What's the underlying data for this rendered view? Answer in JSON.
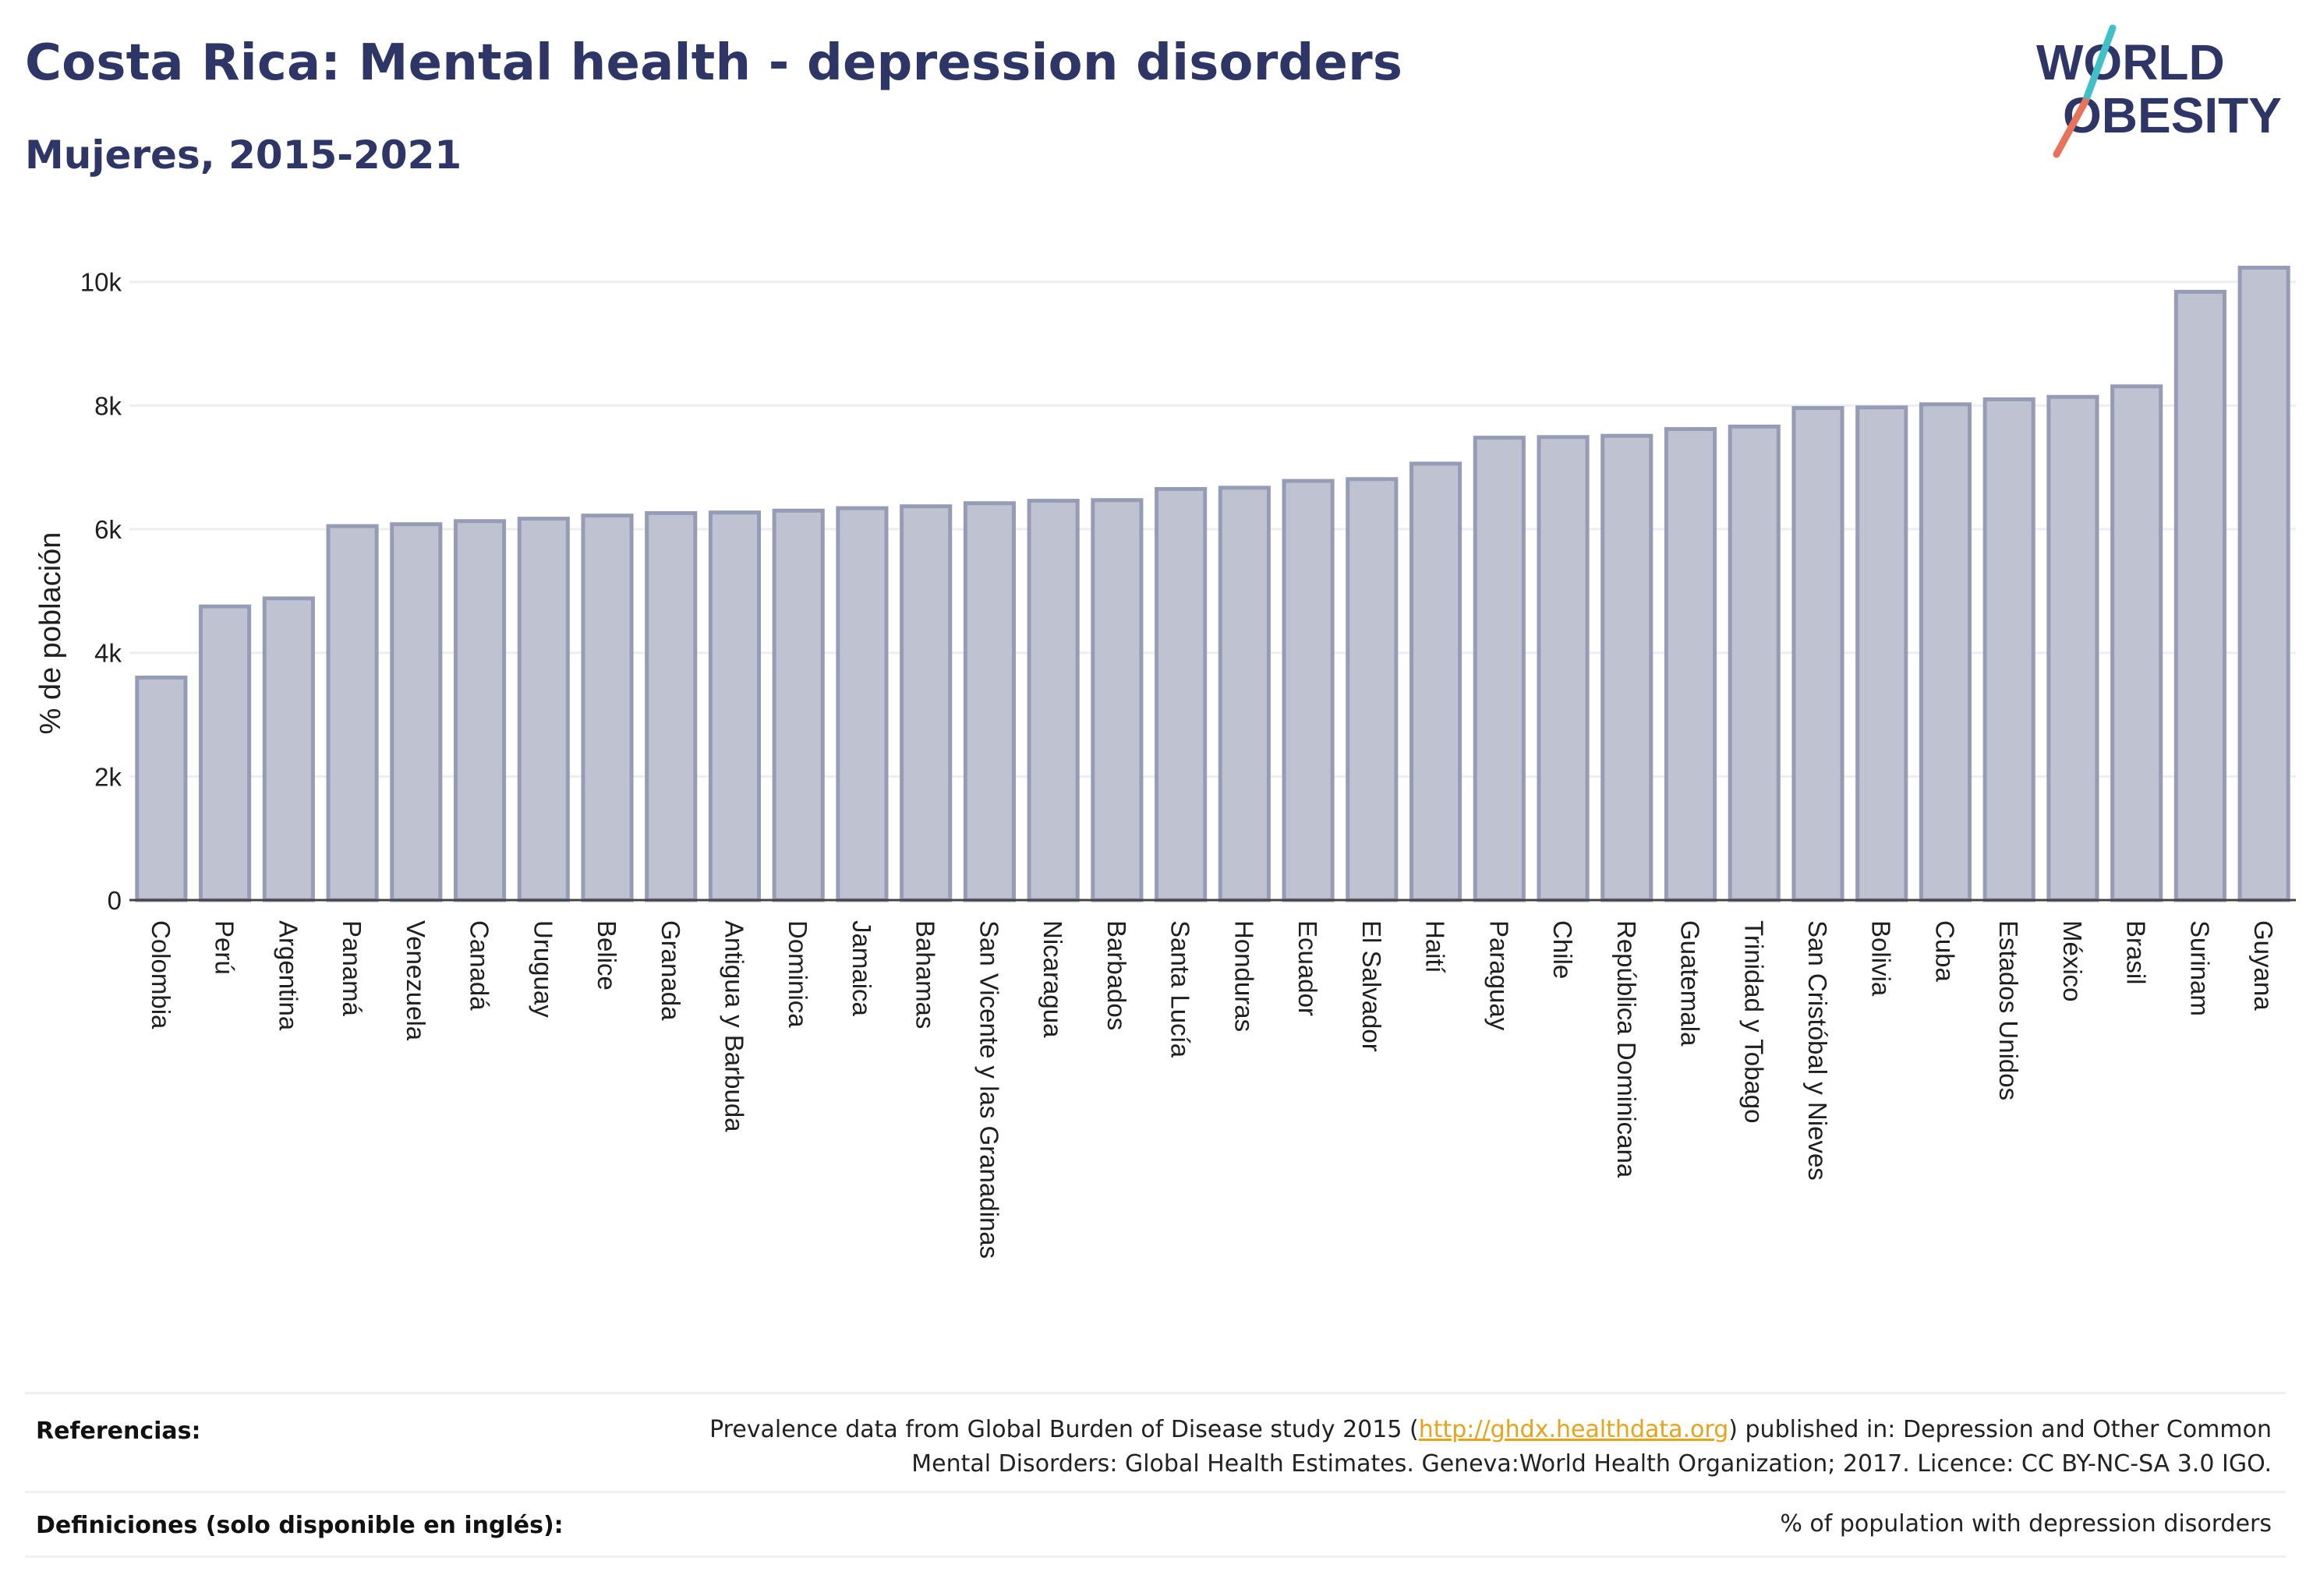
{
  "title": "Costa Rica: Mental health - depression disorders",
  "subtitle": "Mujeres, 2015-2021",
  "logo": {
    "line1": "WORLD",
    "line2": "OBESITY",
    "color_text": "#2d3666",
    "color_slash_top": "#3ec1c9",
    "color_slash_bottom": "#e8735a"
  },
  "colors": {
    "bar_fill": "#bfc3d1",
    "bar_stroke": "#979cb6",
    "grid": "#eceef3",
    "axis": "#444444",
    "link": "#e8a317"
  },
  "chart_data": {
    "type": "bar",
    "ylabel": "% de población",
    "xlabel": "",
    "ylim": [
      0,
      10400
    ],
    "yticks": [
      0,
      2000,
      4000,
      6000,
      8000,
      10000
    ],
    "ytick_labels": [
      "0",
      "2k",
      "4k",
      "6k",
      "8k",
      "10k"
    ],
    "categories": [
      "Colombia",
      "Perú",
      "Argentina",
      "Panamá",
      "Venezuela",
      "Canadá",
      "Uruguay",
      "Belice",
      "Granada",
      "Antigua y Barbuda",
      "Dominica",
      "Jamaica",
      "Bahamas",
      "San Vicente y las Granadinas",
      "Nicaragua",
      "Barbados",
      "Santa Lucía",
      "Honduras",
      "Ecuador",
      "El Salvador",
      "Haití",
      "Paraguay",
      "Chile",
      "República Dominicana",
      "Guatemala",
      "Trinidad y Tobago",
      "San Cristóbal y Nieves",
      "Bolivia",
      "Cuba",
      "Estados Unidos",
      "México",
      "Brasil",
      "Surinam",
      "Guyana"
    ],
    "values": [
      3600,
      4750,
      4880,
      6050,
      6080,
      6130,
      6170,
      6220,
      6260,
      6270,
      6300,
      6340,
      6370,
      6420,
      6460,
      6470,
      6650,
      6670,
      6780,
      6810,
      7060,
      7480,
      7490,
      7510,
      7620,
      7660,
      7960,
      7970,
      8020,
      8100,
      8140,
      8310,
      9840,
      10230
    ]
  },
  "footer": {
    "references_label": "Referencias:",
    "references_pre": "Prevalence data from Global Burden of Disease study 2015 (",
    "references_link": "http://ghdx.healthdata.org",
    "references_post": ") published in: Depression and Other Common Mental Disorders: Global Health Estimates. Geneva:World Health Organization; 2017. Licence: CC BY-NC-SA 3.0 IGO.",
    "definitions_label": "Definiciones (solo disponible en inglés):",
    "definitions_text": "% of population with depression disorders"
  }
}
